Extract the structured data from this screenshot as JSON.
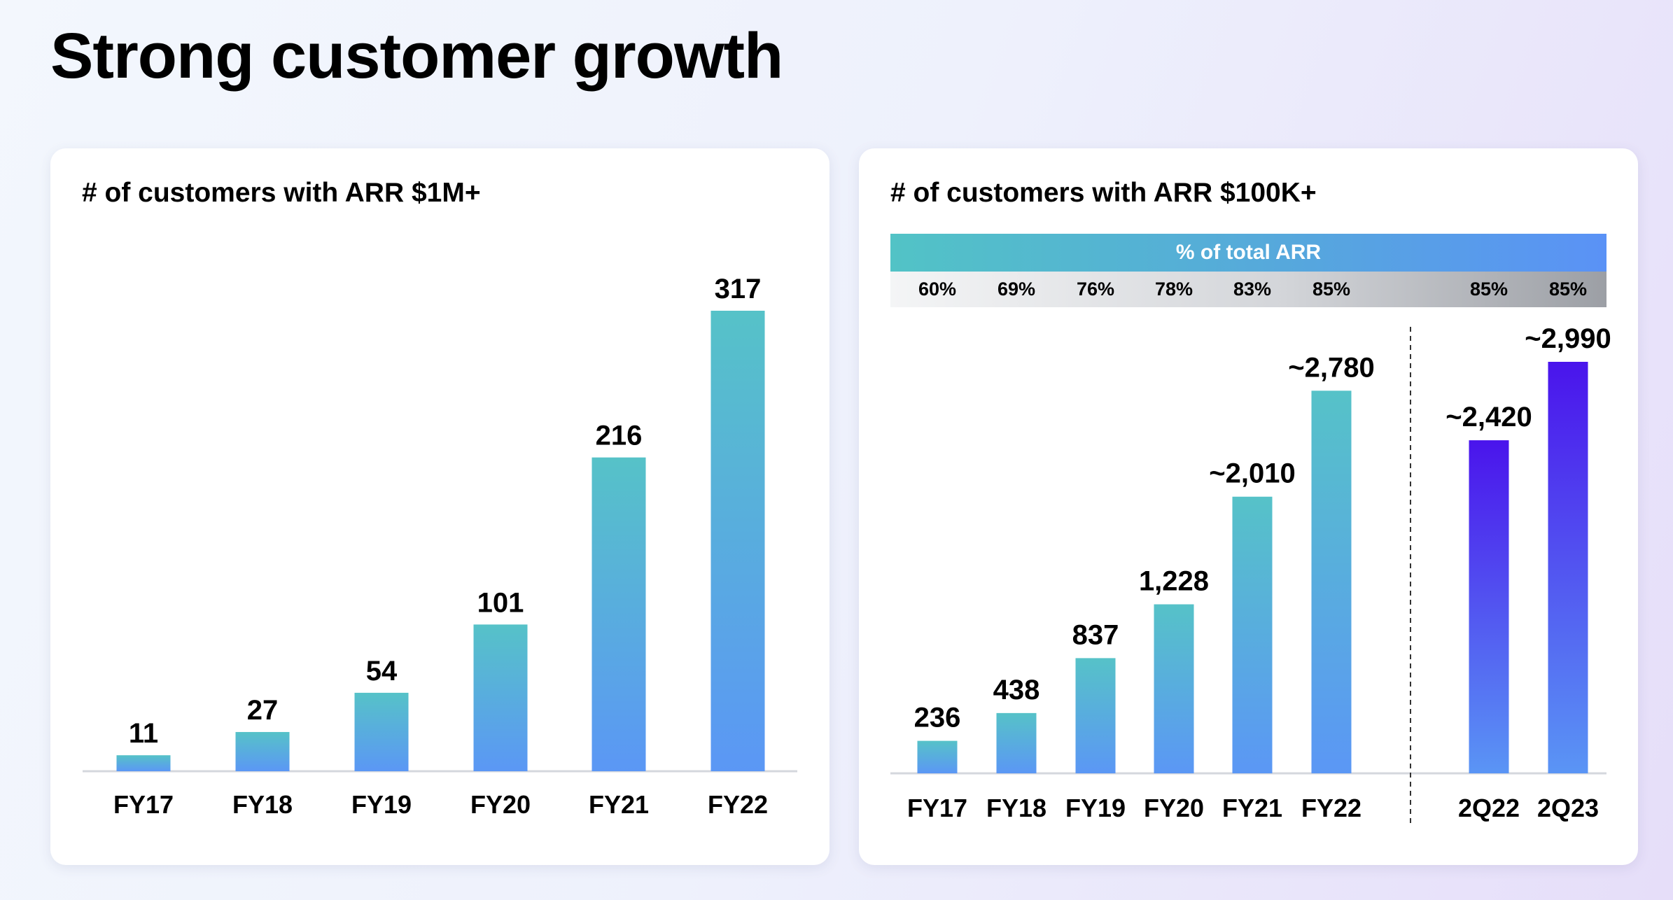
{
  "title": "Strong customer growth",
  "chart_data": [
    {
      "type": "bar",
      "title": "# of customers with ARR $1M+",
      "categories": [
        "FY17",
        "FY18",
        "FY19",
        "FY20",
        "FY21",
        "FY22"
      ],
      "values": [
        11,
        27,
        54,
        101,
        216,
        317
      ],
      "value_labels": [
        "11",
        "27",
        "54",
        "101",
        "216",
        "317"
      ],
      "colors": {
        "bar_top": "#56c2c8",
        "bar_bottom": "#5b97f5",
        "baseline": "#d4d7dd"
      }
    },
    {
      "type": "bar",
      "title": "# of customers with ARR $100K+",
      "categories": [
        "FY17",
        "FY18",
        "FY19",
        "FY20",
        "FY21",
        "FY22",
        "2Q22",
        "2Q23"
      ],
      "values": [
        236,
        438,
        837,
        1228,
        2010,
        2780,
        2420,
        2990
      ],
      "value_labels": [
        "236",
        "438",
        "837",
        "1,228",
        "~2,010",
        "~2,780",
        "~2,420",
        "~2,990"
      ],
      "groups": [
        "fiscal",
        "fiscal",
        "fiscal",
        "fiscal",
        "fiscal",
        "fiscal",
        "quarter",
        "quarter"
      ],
      "pct_total_arr": {
        "label": "% of total ARR",
        "values": [
          "60%",
          "69%",
          "76%",
          "78%",
          "83%",
          "85%",
          "85%",
          "85%"
        ]
      },
      "colors": {
        "fiscal_top": "#56c2c8",
        "fiscal_bottom": "#5b97f5",
        "quarter_top": "#4a14ec",
        "quarter_bottom": "#5a95f5",
        "baseline": "#d4d7dd",
        "divider": "#333333"
      }
    }
  ]
}
